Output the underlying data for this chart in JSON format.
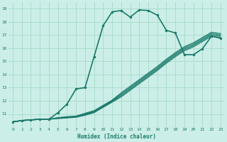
{
  "title": "",
  "xlabel": "Humidex (Indice chaleur)",
  "bg_color": "#cceee8",
  "grid_color": "#aaddcc",
  "line_color": "#1a7a6a",
  "xlim": [
    -0.5,
    23.5
  ],
  "ylim": [
    10,
    19.5
  ],
  "xticks": [
    0,
    1,
    2,
    3,
    4,
    5,
    6,
    7,
    8,
    9,
    10,
    11,
    12,
    13,
    14,
    15,
    16,
    17,
    18,
    19,
    20,
    21,
    22,
    23
  ],
  "yticks": [
    11,
    12,
    13,
    14,
    15,
    16,
    17,
    18,
    19
  ],
  "ytick_labels": [
    "11",
    "12",
    "13",
    "14",
    "15",
    "16",
    "17",
    "18",
    "19"
  ],
  "lines": [
    {
      "x": [
        0,
        1,
        2,
        3,
        4,
        5,
        6,
        7,
        8,
        9,
        10,
        11,
        12,
        13,
        14,
        15,
        16,
        17,
        18,
        19,
        20,
        21,
        22,
        23
      ],
      "y": [
        10.4,
        10.5,
        10.55,
        10.6,
        10.6,
        10.65,
        10.7,
        10.75,
        10.9,
        11.1,
        11.5,
        11.9,
        12.3,
        12.8,
        13.3,
        13.8,
        14.3,
        14.85,
        15.35,
        15.8,
        16.1,
        16.5,
        16.9,
        16.8
      ],
      "marker": null,
      "lw": 0.9
    },
    {
      "x": [
        0,
        1,
        2,
        3,
        4,
        5,
        6,
        7,
        8,
        9,
        10,
        11,
        12,
        13,
        14,
        15,
        16,
        17,
        18,
        19,
        20,
        21,
        22,
        23
      ],
      "y": [
        10.4,
        10.5,
        10.55,
        10.6,
        10.6,
        10.68,
        10.73,
        10.78,
        10.95,
        11.15,
        11.55,
        11.95,
        12.4,
        12.9,
        13.4,
        13.9,
        14.4,
        14.95,
        15.45,
        15.9,
        16.2,
        16.6,
        17.0,
        16.9
      ],
      "marker": null,
      "lw": 0.9
    },
    {
      "x": [
        0,
        1,
        2,
        3,
        4,
        5,
        6,
        7,
        8,
        9,
        10,
        11,
        12,
        13,
        14,
        15,
        16,
        17,
        18,
        19,
        20,
        21,
        22,
        23
      ],
      "y": [
        10.4,
        10.5,
        10.55,
        10.6,
        10.6,
        10.7,
        10.76,
        10.81,
        11.0,
        11.2,
        11.6,
        12.0,
        12.5,
        13.0,
        13.5,
        14.0,
        14.5,
        15.05,
        15.55,
        16.0,
        16.3,
        16.7,
        17.1,
        17.0
      ],
      "marker": null,
      "lw": 0.9
    },
    {
      "x": [
        0,
        1,
        2,
        3,
        4,
        5,
        6,
        7,
        8,
        9,
        10,
        11,
        12,
        13,
        14,
        15,
        16,
        17,
        18,
        19,
        20,
        21,
        22,
        23
      ],
      "y": [
        10.4,
        10.5,
        10.55,
        10.6,
        10.6,
        10.72,
        10.79,
        10.84,
        11.05,
        11.25,
        11.65,
        12.05,
        12.6,
        13.1,
        13.6,
        14.1,
        14.6,
        15.15,
        15.65,
        16.1,
        16.4,
        16.8,
        17.2,
        17.1
      ],
      "marker": null,
      "lw": 0.9
    },
    {
      "x": [
        0,
        1,
        2,
        3,
        4,
        5,
        6,
        7,
        8,
        9,
        10,
        11,
        12,
        13,
        14,
        15,
        16,
        17,
        18,
        19,
        20,
        21,
        22,
        23
      ],
      "y": [
        10.4,
        10.5,
        10.55,
        10.6,
        10.6,
        11.1,
        11.75,
        12.9,
        13.0,
        15.35,
        17.7,
        18.75,
        18.85,
        18.35,
        18.9,
        18.85,
        18.5,
        17.35,
        17.15,
        15.5,
        15.5,
        15.95,
        16.9,
        16.75
      ],
      "marker": "o",
      "lw": 1.2
    }
  ]
}
